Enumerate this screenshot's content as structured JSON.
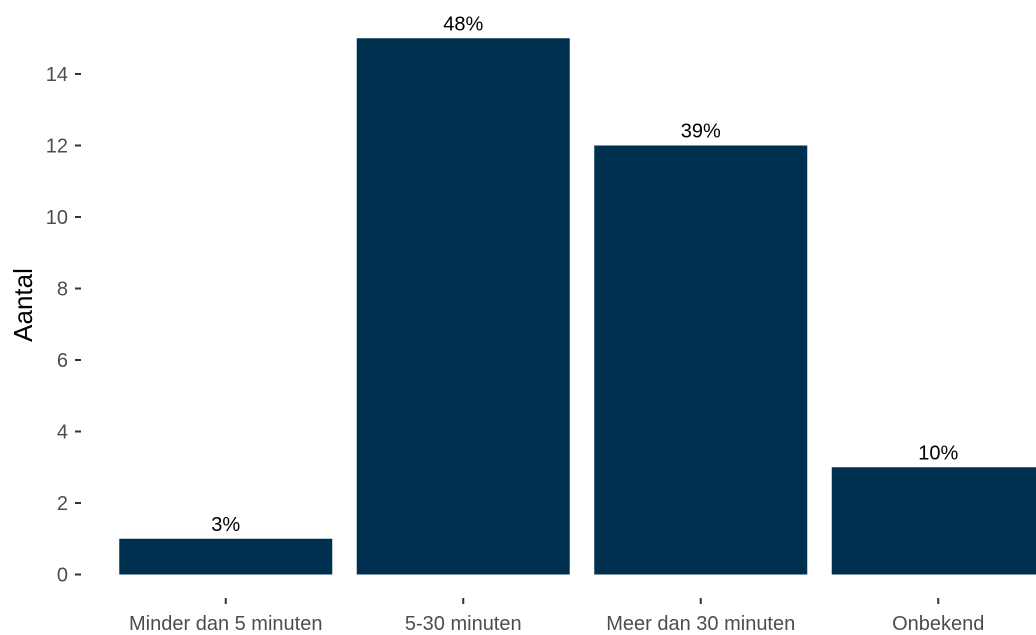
{
  "chart_data": {
    "type": "bar",
    "title": "",
    "xlabel": "",
    "ylabel": "Aantal",
    "categories": [
      "Minder dan 5 minuten",
      "5-30 minuten",
      "Meer dan 30 minuten",
      "Onbekend"
    ],
    "values": [
      1,
      15,
      12,
      3
    ],
    "data_labels": [
      "3%",
      "48%",
      "39%",
      "10%"
    ],
    "ylim": [
      0,
      15
    ],
    "yticks": [
      0,
      2,
      4,
      6,
      8,
      10,
      12,
      14
    ],
    "grid": false,
    "legend": "none",
    "bar_color": "#00304f"
  }
}
